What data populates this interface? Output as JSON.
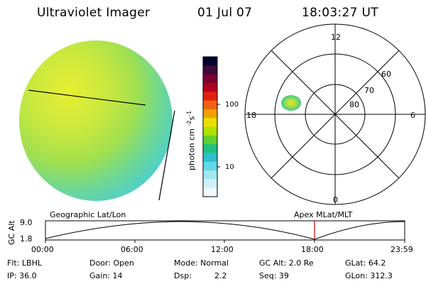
{
  "header": {
    "title": "Ultraviolet Imager",
    "date": "01 Jul 07",
    "time": "18:03:27 UT"
  },
  "colorbar": {
    "unit_label": "photon cm",
    "unit_sup1": "-2",
    "unit_mid": "s",
    "unit_sup2": "-1",
    "ticks": [
      "100",
      "10"
    ],
    "colors": [
      "#000030",
      "#3a0a3a",
      "#7a0030",
      "#b00020",
      "#e02010",
      "#f06010",
      "#f0a000",
      "#e8e000",
      "#b0e000",
      "#60d030",
      "#20c080",
      "#30c0d0",
      "#60d8e8",
      "#a0e8f0",
      "#d0f0f8",
      "#f0f8fc"
    ]
  },
  "polar": {
    "labels": {
      "top": "12",
      "left": "18",
      "right": "6",
      "bottom": "0",
      "r60": "60",
      "r70": "70",
      "r80": "80"
    }
  },
  "timeline": {
    "left_label": "Geographic Lat/Lon",
    "right_label": "Apex  MLat/MLT",
    "axis_label": "GC Alt",
    "y_top": "9.0",
    "y_bottom": "1.8",
    "ticks": [
      "00:00",
      "06:00",
      "12:00",
      "18:00",
      "23:59"
    ]
  },
  "info": {
    "flt": "Flt: LBHL",
    "ip": "IP: 36.0",
    "door": "Door: Open",
    "gain": "Gain: 14",
    "mode": "Mode: Normal",
    "dsp_label": "Dsp:",
    "dsp_value": "2.2",
    "gcalt": "GC Alt: 2.0 Re",
    "seq": "Seq: 39",
    "glat": "GLat:  64.2",
    "glon": "GLon: 312.3"
  }
}
